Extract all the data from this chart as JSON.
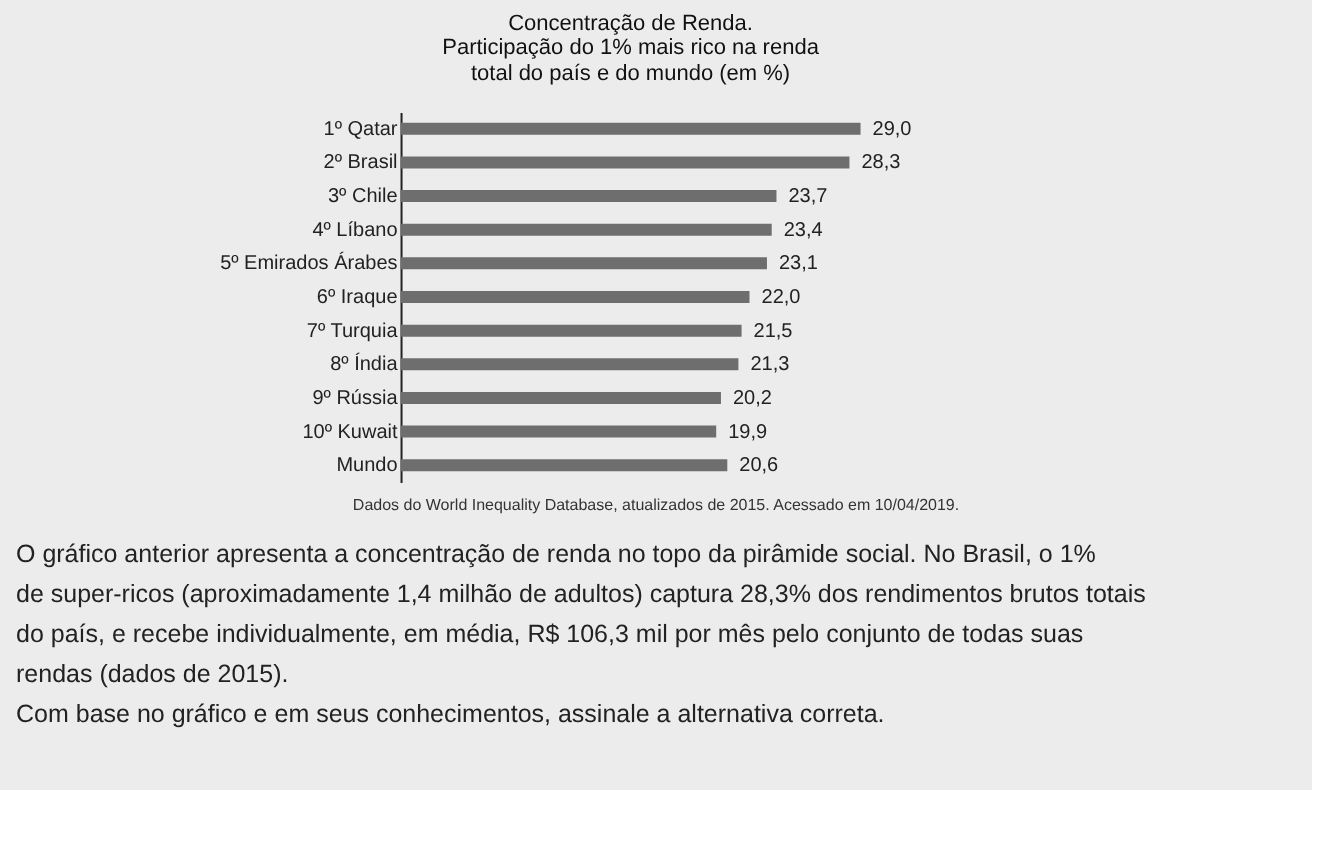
{
  "chart_data": {
    "type": "bar",
    "orientation": "horizontal",
    "title": "Concentração de Renda.",
    "subtitle": "Participação do 1% mais rico na renda total do país e do mundo (em %)",
    "categories": [
      "1º Qatar",
      "2º Brasil",
      "3º Chile",
      "4º Líbano",
      "5º Emirados Árabes",
      "6º Iraque",
      "7º Turquia",
      "8º Índia",
      "9º Rússia",
      "10º Kuwait",
      "Mundo"
    ],
    "values": [
      29.0,
      28.3,
      23.7,
      23.4,
      23.1,
      22.0,
      21.5,
      21.3,
      20.2,
      19.9,
      20.6
    ],
    "value_labels": [
      "29,0",
      "28,3",
      "23,7",
      "23,4",
      "23,1",
      "22,0",
      "21,5",
      "21,3",
      "20,2",
      "19,9",
      "20,6"
    ],
    "color": "#6e6e6e",
    "tick_labels": "y",
    "annotations": [
      "Dados do World Inequality Database, atualizados de 2015. Acessado em 10/04/2019.",
      "O gráfico anterior apresenta a concentração de renda no topo da pirâmide social. No Brasil, o 1% de super-ricos (aproximadamente 1,4 milhão de adultos) captura 28,3% dos rendimentos brutos totais do país, e recebe individualmente, em média, R$ 106,3 mil por mês pelo conjunto de todas suas rendas (dados de 2015).",
      "Com base no gráfico e em seus conhecimentos, assinale a alternativa correta."
    ]
  }
}
